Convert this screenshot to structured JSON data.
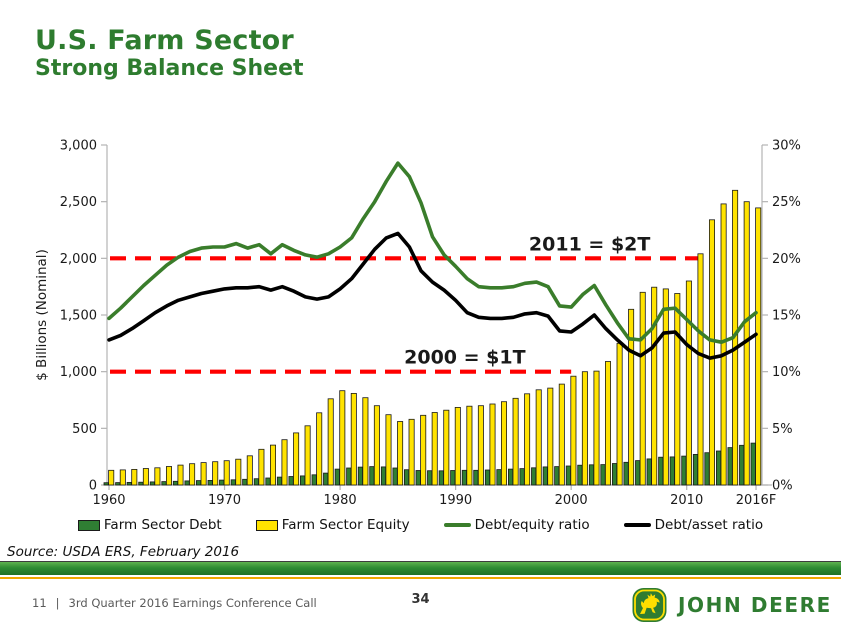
{
  "header": {
    "title": "U.S. Farm Sector",
    "subtitle": "Strong Balance Sheet"
  },
  "chart_data": {
    "type": "bar",
    "title": "",
    "x": [
      1960,
      1961,
      1962,
      1963,
      1964,
      1965,
      1966,
      1967,
      1968,
      1969,
      1970,
      1971,
      1972,
      1973,
      1974,
      1975,
      1976,
      1977,
      1978,
      1979,
      1980,
      1981,
      1982,
      1983,
      1984,
      1985,
      1986,
      1987,
      1988,
      1989,
      1990,
      1991,
      1992,
      1993,
      1994,
      1995,
      1996,
      1997,
      1998,
      1999,
      2000,
      2001,
      2002,
      2003,
      2004,
      2005,
      2006,
      2007,
      2008,
      2009,
      2010,
      2011,
      2012,
      2013,
      2014,
      2015,
      2016
    ],
    "x_ticks": [
      {
        "year": 1960,
        "label": "1960"
      },
      {
        "year": 1970,
        "label": "1970"
      },
      {
        "year": 1980,
        "label": "1980"
      },
      {
        "year": 1990,
        "label": "1990"
      },
      {
        "year": 2000,
        "label": "2000"
      },
      {
        "year": 2010,
        "label": "2010"
      },
      {
        "year": 2016,
        "label": "2016F"
      }
    ],
    "left_axis": {
      "label": "$ Billions (Nominal)",
      "values": [
        0,
        500,
        1000,
        1500,
        2000,
        2500,
        3000
      ],
      "tick_labels": [
        "0",
        "500",
        "1,000",
        "1,500",
        "2,000",
        "2,500",
        "3,000"
      ],
      "range": [
        0,
        3000
      ]
    },
    "right_axis": {
      "values": [
        0,
        5,
        10,
        15,
        20,
        25,
        30
      ],
      "tick_labels": [
        "0%",
        "5%",
        "10%",
        "15%",
        "20%",
        "25%",
        "30%"
      ],
      "range": [
        0,
        30
      ]
    },
    "grid": false,
    "legend_position": "bottom",
    "series": [
      {
        "name": "Farm Sector Debt",
        "type": "bar",
        "axis": "left",
        "color": "#2F7E33",
        "values": [
          20,
          21,
          23,
          25,
          27,
          30,
          33,
          36,
          39,
          41,
          43,
          46,
          50,
          56,
          62,
          70,
          75,
          80,
          90,
          105,
          140,
          150,
          158,
          162,
          160,
          150,
          135,
          128,
          126,
          125,
          128,
          130,
          130,
          132,
          136,
          140,
          145,
          152,
          160,
          162,
          168,
          175,
          178,
          180,
          190,
          200,
          215,
          230,
          245,
          248,
          255,
          270,
          285,
          300,
          330,
          350,
          370
        ]
      },
      {
        "name": "Farm Sector Equity",
        "type": "bar",
        "axis": "left",
        "color": "#FFE300",
        "values": [
          130,
          133,
          138,
          146,
          152,
          163,
          176,
          188,
          198,
          206,
          214,
          228,
          258,
          315,
          352,
          400,
          460,
          522,
          637,
          761,
          832,
          808,
          770,
          700,
          620,
          560,
          580,
          615,
          640,
          660,
          685,
          695,
          700,
          715,
          735,
          765,
          805,
          840,
          855,
          890,
          960,
          1000,
          1005,
          1090,
          1250,
          1550,
          1700,
          1745,
          1730,
          1690,
          1800,
          2040,
          2340,
          2480,
          2600,
          2500,
          2445
        ]
      },
      {
        "name": "Debt/equity ratio",
        "type": "line",
        "axis": "right",
        "color": "#3A7D2B",
        "values": [
          14.7,
          15.6,
          16.6,
          17.6,
          18.5,
          19.4,
          20.1,
          20.6,
          20.9,
          21.0,
          21.0,
          21.3,
          20.9,
          21.2,
          20.4,
          21.2,
          20.7,
          20.3,
          20.1,
          20.4,
          21.0,
          21.8,
          23.5,
          25.0,
          26.8,
          28.4,
          27.2,
          24.9,
          21.9,
          20.3,
          19.3,
          18.2,
          17.5,
          17.4,
          17.4,
          17.5,
          17.8,
          17.9,
          17.5,
          15.8,
          15.7,
          16.8,
          17.6,
          15.9,
          14.3,
          12.9,
          12.8,
          13.8,
          15.5,
          15.6,
          14.6,
          13.6,
          12.8,
          12.6,
          13.0,
          14.4,
          15.2
        ]
      },
      {
        "name": "Debt/asset ratio",
        "type": "line",
        "axis": "right",
        "color": "#000000",
        "values": [
          12.8,
          13.2,
          13.8,
          14.5,
          15.2,
          15.8,
          16.3,
          16.6,
          16.9,
          17.1,
          17.3,
          17.4,
          17.4,
          17.5,
          17.2,
          17.5,
          17.1,
          16.6,
          16.4,
          16.6,
          17.3,
          18.2,
          19.5,
          20.8,
          21.8,
          22.2,
          21.0,
          18.9,
          17.9,
          17.2,
          16.3,
          15.2,
          14.8,
          14.7,
          14.7,
          14.8,
          15.1,
          15.2,
          14.9,
          13.6,
          13.5,
          14.2,
          15.0,
          13.8,
          12.8,
          11.9,
          11.4,
          12.1,
          13.4,
          13.5,
          12.4,
          11.6,
          11.2,
          11.4,
          11.9,
          12.6,
          13.3
        ]
      }
    ],
    "annotations": [
      {
        "text": "2011 = $2T",
        "line_value": 2000,
        "line_end_year": 2011,
        "text_year": 2001.6,
        "color": "#FF0000"
      },
      {
        "text": "2000 = $1T",
        "line_value": 1000,
        "line_end_year": 2000,
        "text_year": 1990.8,
        "color": "#FF0000"
      }
    ]
  },
  "legend": {
    "items": [
      {
        "label": "Farm Sector Debt",
        "swatch": "box",
        "color": "#2F7E33"
      },
      {
        "label": "Farm Sector Equity",
        "swatch": "box",
        "color": "#FFE300"
      },
      {
        "label": "Debt/equity ratio",
        "swatch": "line",
        "color": "#3A7D2B"
      },
      {
        "label": "Debt/asset ratio",
        "swatch": "line",
        "color": "#000000"
      }
    ]
  },
  "source": "Source: USDA ERS, February 2016",
  "footer": {
    "page_number": "11",
    "divider": "|",
    "deck_title": "3rd Quarter 2016 Earnings Conference Call",
    "slide_number": "34",
    "logo_text": "John Deere"
  }
}
